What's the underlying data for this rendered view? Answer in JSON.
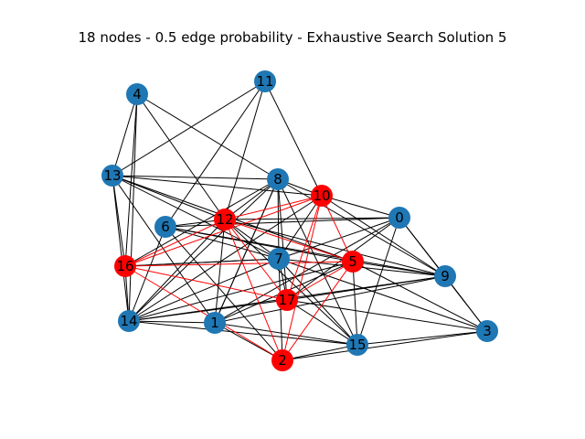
{
  "title": "18 nodes - 0.5 edge probability - Exhaustive Search Solution 5",
  "colors": {
    "default_node": "#1f77b4",
    "solution_node": "#ff0000",
    "default_edge": "#000000",
    "solution_edge": "#ff0000",
    "background": "#ffffff"
  },
  "graph": {
    "solution_nodes": [
      "2",
      "5",
      "10",
      "12",
      "16",
      "17"
    ],
    "nodes": [
      {
        "id": "0",
        "label": "0"
      },
      {
        "id": "1",
        "label": "1"
      },
      {
        "id": "2",
        "label": "2"
      },
      {
        "id": "3",
        "label": "3"
      },
      {
        "id": "4",
        "label": "4"
      },
      {
        "id": "5",
        "label": "5"
      },
      {
        "id": "6",
        "label": "6"
      },
      {
        "id": "7",
        "label": "7"
      },
      {
        "id": "8",
        "label": "8"
      },
      {
        "id": "9",
        "label": "9"
      },
      {
        "id": "10",
        "label": "10"
      },
      {
        "id": "11",
        "label": "11"
      },
      {
        "id": "12",
        "label": "12"
      },
      {
        "id": "13",
        "label": "13"
      },
      {
        "id": "14",
        "label": "14"
      },
      {
        "id": "15",
        "label": "15"
      },
      {
        "id": "16",
        "label": "16"
      },
      {
        "id": "17",
        "label": "17"
      }
    ],
    "edges": [
      [
        "12",
        "16"
      ],
      [
        "12",
        "17"
      ],
      [
        "12",
        "5"
      ],
      [
        "12",
        "10"
      ],
      [
        "12",
        "2"
      ],
      [
        "16",
        "17"
      ],
      [
        "16",
        "5"
      ],
      [
        "16",
        "10"
      ],
      [
        "16",
        "2"
      ],
      [
        "17",
        "5"
      ],
      [
        "17",
        "10"
      ],
      [
        "5",
        "10"
      ],
      [
        "5",
        "2"
      ],
      [
        "10",
        "2"
      ],
      [
        "4",
        "13"
      ],
      [
        "4",
        "16"
      ],
      [
        "4",
        "12"
      ],
      [
        "4",
        "8"
      ],
      [
        "4",
        "14"
      ],
      [
        "11",
        "13"
      ],
      [
        "11",
        "12"
      ],
      [
        "11",
        "10"
      ],
      [
        "11",
        "6"
      ],
      [
        "13",
        "8"
      ],
      [
        "13",
        "10"
      ],
      [
        "13",
        "12"
      ],
      [
        "13",
        "14"
      ],
      [
        "13",
        "7"
      ],
      [
        "13",
        "16"
      ],
      [
        "13",
        "1"
      ],
      [
        "13",
        "5"
      ],
      [
        "8",
        "12"
      ],
      [
        "8",
        "16"
      ],
      [
        "8",
        "14"
      ],
      [
        "8",
        "9"
      ],
      [
        "8",
        "7"
      ],
      [
        "8",
        "15"
      ],
      [
        "8",
        "10"
      ],
      [
        "8",
        "17"
      ],
      [
        "8",
        "1"
      ],
      [
        "10",
        "0"
      ],
      [
        "10",
        "14"
      ],
      [
        "10",
        "9"
      ],
      [
        "10",
        "7"
      ],
      [
        "0",
        "6"
      ],
      [
        "0",
        "7"
      ],
      [
        "0",
        "17"
      ],
      [
        "0",
        "15"
      ],
      [
        "0",
        "1"
      ],
      [
        "0",
        "3"
      ],
      [
        "6",
        "12"
      ],
      [
        "6",
        "7"
      ],
      [
        "6",
        "9"
      ],
      [
        "6",
        "14"
      ],
      [
        "6",
        "5"
      ],
      [
        "6",
        "2"
      ],
      [
        "12",
        "9"
      ],
      [
        "12",
        "15"
      ],
      [
        "12",
        "1"
      ],
      [
        "12",
        "7"
      ],
      [
        "12",
        "14"
      ],
      [
        "12",
        "0"
      ],
      [
        "7",
        "16"
      ],
      [
        "7",
        "14"
      ],
      [
        "7",
        "3"
      ],
      [
        "7",
        "15"
      ],
      [
        "7",
        "2"
      ],
      [
        "7",
        "9"
      ],
      [
        "5",
        "9"
      ],
      [
        "5",
        "3"
      ],
      [
        "5",
        "14"
      ],
      [
        "5",
        "1"
      ],
      [
        "5",
        "15"
      ],
      [
        "16",
        "14"
      ],
      [
        "16",
        "7"
      ],
      [
        "17",
        "9"
      ],
      [
        "17",
        "3"
      ],
      [
        "17",
        "14"
      ],
      [
        "17",
        "15"
      ],
      [
        "17",
        "7"
      ],
      [
        "9",
        "3"
      ],
      [
        "9",
        "0"
      ],
      [
        "9",
        "1"
      ],
      [
        "9",
        "14"
      ],
      [
        "14",
        "1"
      ],
      [
        "14",
        "15"
      ],
      [
        "1",
        "2"
      ],
      [
        "1",
        "15"
      ],
      [
        "1",
        "8"
      ],
      [
        "15",
        "3"
      ],
      [
        "15",
        "2"
      ],
      [
        "2",
        "3"
      ]
    ]
  }
}
